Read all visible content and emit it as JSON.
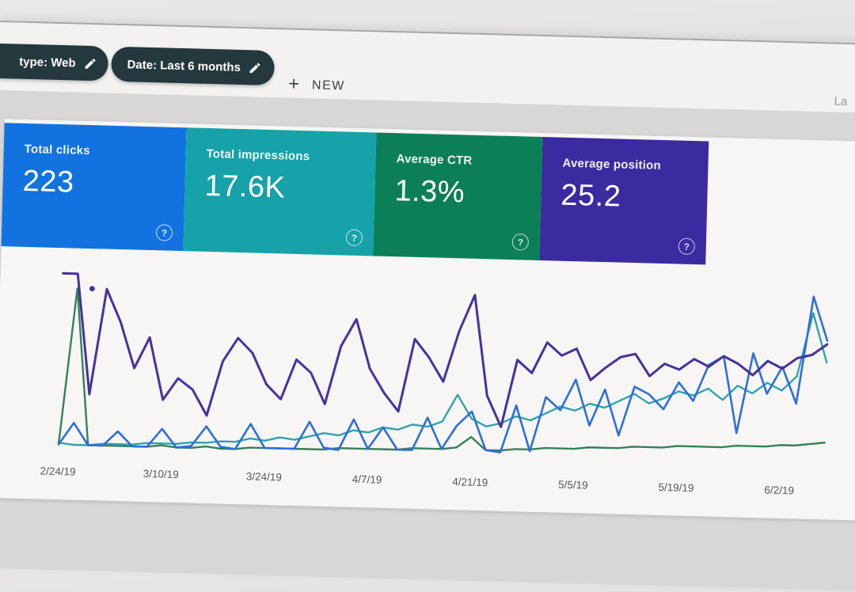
{
  "toolbar": {
    "chips": [
      {
        "label": "type: Web"
      },
      {
        "label": "Date: Last 6 months"
      }
    ],
    "new_button": {
      "plus": "+",
      "label": "NEW"
    },
    "partial_right_text": "La"
  },
  "cards": [
    {
      "label": "Total clicks",
      "value": "223",
      "bg": "#1273e0",
      "help": "?"
    },
    {
      "label": "Total impressions",
      "value": "17.6K",
      "bg": "#17a1a8",
      "help": "?"
    },
    {
      "label": "Average CTR",
      "value": "1.3%",
      "bg": "#0d7f56",
      "help": "?"
    },
    {
      "label": "Average position",
      "value": "25.2",
      "bg": "#3b2ba0",
      "help": "?"
    }
  ],
  "colors": {
    "chip_bg": "#24383e",
    "panel_bg": "#f7f6f4",
    "page_band": "#d8d7d5"
  },
  "chart_data": {
    "type": "line",
    "title": "",
    "xlabel": "",
    "ylabel": "",
    "x_tick_labels": [
      "2/24/19",
      "3/10/19",
      "3/24/19",
      "4/7/19",
      "4/21/19",
      "5/5/19",
      "5/19/19",
      "6/2/19"
    ],
    "x_tick_days": [
      0,
      14,
      28,
      42,
      56,
      70,
      84,
      98
    ],
    "day_step": 2,
    "days_total": 104,
    "ylim": [
      0,
      100
    ],
    "y_unit": "normalized percent of plot height (no y axis shown in UI)",
    "grid": false,
    "legend": "none (series colors match metric cards)",
    "series": [
      {
        "name": "Impressions",
        "color": "#2fa3ae",
        "width": 2.4,
        "values": [
          3,
          2,
          2,
          3,
          3,
          3,
          4,
          4,
          4,
          5,
          5,
          6,
          6,
          8,
          7,
          9,
          8,
          10,
          12,
          11,
          14,
          13,
          16,
          15,
          18,
          17,
          20,
          35,
          22,
          18,
          20,
          24,
          22,
          26,
          30,
          28,
          32,
          30,
          34,
          38,
          33,
          36,
          40,
          38,
          42,
          36,
          44,
          40,
          46,
          42,
          50,
          85,
          58
        ]
      },
      {
        "name": "CTR",
        "color": "#35815b",
        "width": 2.4,
        "values": [
          2,
          88,
          2,
          2,
          2,
          2,
          2,
          3,
          2,
          2,
          3,
          2,
          2,
          3,
          3,
          3,
          3,
          3,
          3,
          4,
          4,
          4,
          4,
          4,
          5,
          5,
          5,
          6,
          12,
          5,
          5,
          6,
          6,
          7,
          7,
          7,
          8,
          8,
          8,
          9,
          9,
          9,
          10,
          10,
          10,
          10,
          11,
          11,
          11,
          12,
          12,
          13,
          14
        ]
      },
      {
        "name": "Clicks",
        "color": "#2e6fd8",
        "width": 2.6,
        "values": [
          2,
          14,
          2,
          2,
          10,
          2,
          2,
          12,
          2,
          3,
          14,
          3,
          2,
          16,
          3,
          3,
          3,
          18,
          4,
          3,
          20,
          4,
          16,
          4,
          4,
          22,
          5,
          18,
          26,
          5,
          4,
          30,
          5,
          35,
          28,
          45,
          20,
          40,
          15,
          42,
          38,
          30,
          45,
          35,
          55,
          60,
          18,
          62,
          40,
          55,
          35,
          94,
          70
        ]
      },
      {
        "name": "Position",
        "color": "#46319f",
        "width": 3,
        "values": [
          96,
          96,
          30,
          88,
          70,
          45,
          62,
          28,
          40,
          34,
          20,
          50,
          63,
          55,
          38,
          30,
          52,
          45,
          28,
          60,
          75,
          48,
          35,
          25,
          65,
          55,
          42,
          70,
          90,
          35,
          18,
          55,
          48,
          65,
          58,
          62,
          45,
          52,
          58,
          60,
          48,
          55,
          52,
          58,
          54,
          60,
          56,
          50,
          58,
          54,
          60,
          62,
          68
        ],
        "isolated_point": {
          "day": 4,
          "value": 88
        }
      }
    ]
  }
}
